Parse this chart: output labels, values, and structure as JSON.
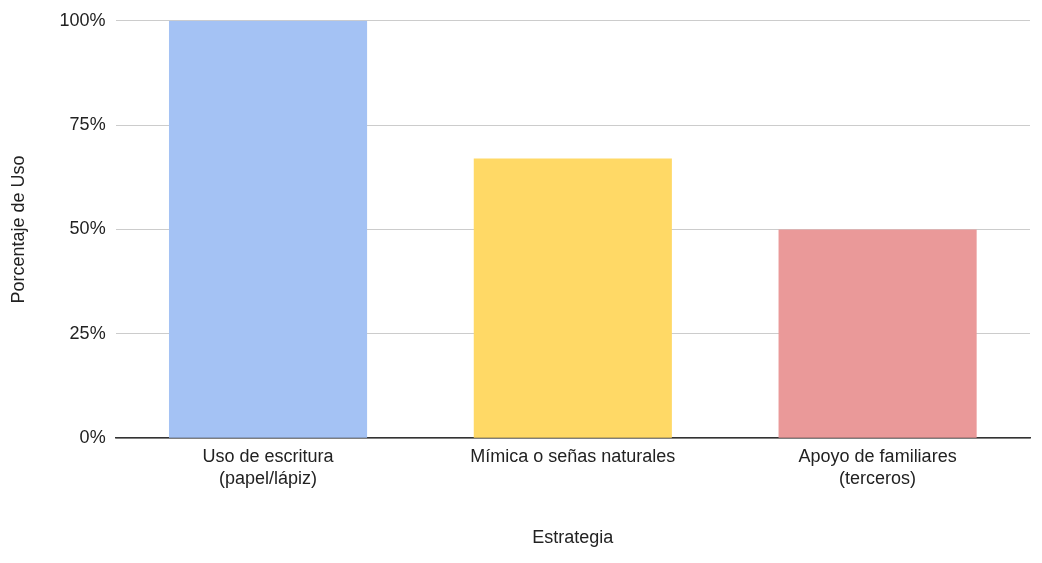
{
  "chart_data": {
    "type": "bar",
    "xlabel": "Estrategia",
    "ylabel": "Porcentaje de Uso",
    "categories": [
      "Uso de escritura (papel/lápiz)",
      "Mímica o señas naturales",
      "Apoyo de familiares (terceros)"
    ],
    "values": [
      100,
      67,
      50
    ],
    "colors": [
      "#a4c2f4",
      "#ffd966",
      "#ea9999"
    ],
    "ylim": [
      0,
      100
    ],
    "yticks": [
      {
        "value": 0,
        "label": "0%"
      },
      {
        "value": 25,
        "label": "25%"
      },
      {
        "value": 50,
        "label": "50%"
      },
      {
        "value": 75,
        "label": "75%"
      },
      {
        "value": 100,
        "label": "100%"
      }
    ],
    "grid": "y",
    "legend": false
  }
}
